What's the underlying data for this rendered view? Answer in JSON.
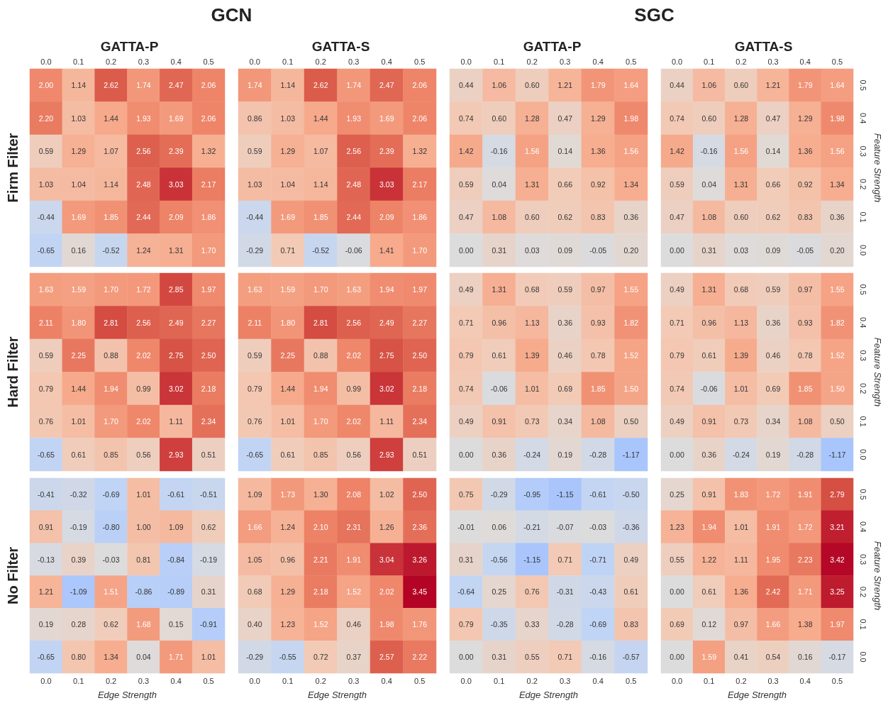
{
  "chart_data": [
    {
      "type": "heatmap",
      "title": "GATTA-P",
      "ylabel": "Firm Filter",
      "annotations": [
        "GCN"
      ],
      "tick_labels": "x",
      "categories": [
        "0.0",
        "0.1",
        "0.2",
        "0.3",
        "0.4",
        "0.5"
      ],
      "y_categories": [
        "0.5",
        "0.4",
        "0.3",
        "0.2",
        "0.1",
        "0.0"
      ],
      "cells": [
        [
          2.0,
          1.14,
          2.62,
          1.74,
          2.47,
          2.06
        ],
        [
          2.2,
          1.03,
          1.44,
          1.93,
          1.69,
          2.06
        ],
        [
          0.59,
          1.29,
          1.07,
          2.56,
          2.39,
          1.32
        ],
        [
          1.03,
          1.04,
          1.14,
          2.48,
          3.03,
          2.17
        ],
        [
          -0.44,
          1.69,
          1.85,
          2.44,
          2.09,
          1.86
        ],
        [
          -0.65,
          0.16,
          -0.52,
          1.24,
          1.31,
          1.7
        ]
      ],
      "cell_labels": [
        [
          "2.00",
          "1.14",
          "2.62",
          "1.74",
          "2.47",
          "2.06"
        ],
        [
          "2.20",
          "1.03",
          "1.44",
          "1.93",
          "1.69",
          "2.06"
        ],
        [
          "0.59",
          "1.29",
          "1.07",
          "2.56",
          "2.39",
          "1.32"
        ],
        [
          "1.03",
          "1.04",
          "1.14",
          "2.48",
          "3.03",
          "2.17"
        ],
        [
          "-0.44",
          "1.69",
          "1.85",
          "2.44",
          "2.09",
          "1.86"
        ],
        [
          "-0.65",
          "0.16",
          "-0.52",
          "1.24",
          "1.31",
          "1.70"
        ]
      ]
    },
    {
      "type": "heatmap",
      "title": "GATTA-S",
      "tick_labels": "x",
      "categories": [
        "0.0",
        "0.1",
        "0.2",
        "0.3",
        "0.4",
        "0.5"
      ],
      "y_categories": [
        "0.5",
        "0.4",
        "0.3",
        "0.2",
        "0.1",
        "0.0"
      ],
      "cells": [
        [
          1.74,
          1.14,
          2.62,
          1.74,
          2.47,
          2.06
        ],
        [
          0.86,
          1.03,
          1.44,
          1.93,
          1.69,
          2.06
        ],
        [
          0.59,
          1.29,
          1.07,
          2.56,
          2.39,
          1.32
        ],
        [
          1.03,
          1.04,
          1.14,
          2.48,
          3.03,
          2.17
        ],
        [
          -0.44,
          1.69,
          1.85,
          2.44,
          2.09,
          1.86
        ],
        [
          -0.29,
          0.71,
          -0.52,
          -0.06,
          1.41,
          1.7
        ]
      ],
      "cell_labels": [
        [
          "1.74",
          "1.14",
          "2.62",
          "1.74",
          "2.47",
          "2.06"
        ],
        [
          "0.86",
          "1.03",
          "1.44",
          "1.93",
          "1.69",
          "2.06"
        ],
        [
          "0.59",
          "1.29",
          "1.07",
          "2.56",
          "2.39",
          "1.32"
        ],
        [
          "1.03",
          "1.04",
          "1.14",
          "2.48",
          "3.03",
          "2.17"
        ],
        [
          "-0.44",
          "1.69",
          "1.85",
          "2.44",
          "2.09",
          "1.86"
        ],
        [
          "-0.29",
          "0.71",
          "-0.52",
          "-0.06",
          "1.41",
          "1.70"
        ]
      ]
    },
    {
      "type": "heatmap",
      "title": "GATTA-P",
      "annotations": [
        "SGC"
      ],
      "tick_labels": "x",
      "categories": [
        "0.0",
        "0.1",
        "0.2",
        "0.3",
        "0.4",
        "0.5"
      ],
      "y_categories": [
        "0.5",
        "0.4",
        "0.3",
        "0.2",
        "0.1",
        "0.0"
      ],
      "cells": [
        [
          0.44,
          1.06,
          0.6,
          1.21,
          1.79,
          1.64
        ],
        [
          0.74,
          0.6,
          1.28,
          0.47,
          1.29,
          1.98
        ],
        [
          1.42,
          -0.16,
          1.56,
          0.14,
          1.36,
          1.56
        ],
        [
          0.59,
          0.04,
          1.31,
          0.66,
          0.92,
          1.34
        ],
        [
          0.47,
          1.08,
          0.6,
          0.62,
          0.83,
          0.36
        ],
        [
          0.0,
          0.31,
          0.03,
          0.09,
          -0.05,
          0.2
        ]
      ],
      "cell_labels": [
        [
          "0.44",
          "1.06",
          "0.60",
          "1.21",
          "1.79",
          "1.64"
        ],
        [
          "0.74",
          "0.60",
          "1.28",
          "0.47",
          "1.29",
          "1.98"
        ],
        [
          "1.42",
          "-0.16",
          "1.56",
          "0.14",
          "1.36",
          "1.56"
        ],
        [
          "0.59",
          "0.04",
          "1.31",
          "0.66",
          "0.92",
          "1.34"
        ],
        [
          "0.47",
          "1.08",
          "0.60",
          "0.62",
          "0.83",
          "0.36"
        ],
        [
          "0.00",
          "0.31",
          "0.03",
          "0.09",
          "-0.05",
          "0.20"
        ]
      ]
    },
    {
      "type": "heatmap",
      "title": "GATTA-S",
      "y2label": "Feature Strength",
      "categories": [
        "0.0",
        "0.1",
        "0.2",
        "0.3",
        "0.4",
        "0.5"
      ],
      "y_categories": [
        "0.5",
        "0.4",
        "0.3",
        "0.2",
        "0.1",
        "0.0"
      ],
      "cells": [
        [
          0.44,
          1.06,
          0.6,
          1.21,
          1.79,
          1.64
        ],
        [
          0.74,
          0.6,
          1.28,
          0.47,
          1.29,
          1.98
        ],
        [
          1.42,
          -0.16,
          1.56,
          0.14,
          1.36,
          1.56
        ],
        [
          0.59,
          0.04,
          1.31,
          0.66,
          0.92,
          1.34
        ],
        [
          0.47,
          1.08,
          0.6,
          0.62,
          0.83,
          0.36
        ],
        [
          0.0,
          0.31,
          0.03,
          0.09,
          -0.05,
          0.2
        ]
      ],
      "cell_labels": [
        [
          "0.44",
          "1.06",
          "0.60",
          "1.21",
          "1.79",
          "1.64"
        ],
        [
          "0.74",
          "0.60",
          "1.28",
          "0.47",
          "1.29",
          "1.98"
        ],
        [
          "1.42",
          "-0.16",
          "1.56",
          "0.14",
          "1.36",
          "1.56"
        ],
        [
          "0.59",
          "0.04",
          "1.31",
          "0.66",
          "0.92",
          "1.34"
        ],
        [
          "0.47",
          "1.08",
          "0.60",
          "0.62",
          "0.83",
          "0.36"
        ],
        [
          "0.00",
          "0.31",
          "0.03",
          "0.09",
          "-0.05",
          "0.20"
        ]
      ]
    },
    {
      "type": "heatmap",
      "ylabel": "Hard Filter",
      "tick_labels": false,
      "categories": [
        "0.0",
        "0.1",
        "0.2",
        "0.3",
        "0.4",
        "0.5"
      ],
      "y_categories": [
        "0.5",
        "0.4",
        "0.3",
        "0.2",
        "0.1",
        "0.0"
      ],
      "cells": [
        [
          1.63,
          1.59,
          1.7,
          1.72,
          2.85,
          1.97
        ],
        [
          2.11,
          1.8,
          2.81,
          2.56,
          2.49,
          2.27
        ],
        [
          0.59,
          2.25,
          0.88,
          2.02,
          2.75,
          2.5
        ],
        [
          0.79,
          1.44,
          1.94,
          0.99,
          3.02,
          2.18
        ],
        [
          0.76,
          1.01,
          1.7,
          2.02,
          1.11,
          2.34
        ],
        [
          -0.65,
          0.61,
          0.85,
          0.56,
          2.93,
          0.51
        ]
      ],
      "cell_labels": [
        [
          "1.63",
          "1.59",
          "1.70",
          "1.72",
          "2.85",
          "1.97"
        ],
        [
          "2.11",
          "1.80",
          "2.81",
          "2.56",
          "2.49",
          "2.27"
        ],
        [
          "0.59",
          "2.25",
          "0.88",
          "2.02",
          "2.75",
          "2.50"
        ],
        [
          "0.79",
          "1.44",
          "1.94",
          "0.99",
          "3.02",
          "2.18"
        ],
        [
          "0.76",
          "1.01",
          "1.70",
          "2.02",
          "1.11",
          "2.34"
        ],
        [
          "-0.65",
          "0.61",
          "0.85",
          "0.56",
          "2.93",
          "0.51"
        ]
      ]
    },
    {
      "type": "heatmap",
      "categories": [
        "0.0",
        "0.1",
        "0.2",
        "0.3",
        "0.4",
        "0.5"
      ],
      "y_categories": [
        "0.5",
        "0.4",
        "0.3",
        "0.2",
        "0.1",
        "0.0"
      ],
      "tick_labels": false,
      "cells": [
        [
          1.63,
          1.59,
          1.7,
          1.63,
          1.94,
          1.97
        ],
        [
          2.11,
          1.8,
          2.81,
          2.56,
          2.49,
          2.27
        ],
        [
          0.59,
          2.25,
          0.88,
          2.02,
          2.75,
          2.5
        ],
        [
          0.79,
          1.44,
          1.94,
          0.99,
          3.02,
          2.18
        ],
        [
          0.76,
          1.01,
          1.7,
          2.02,
          1.11,
          2.34
        ],
        [
          -0.65,
          0.61,
          0.85,
          0.56,
          2.93,
          0.51
        ]
      ],
      "cell_labels": [
        [
          "1.63",
          "1.59",
          "1.70",
          "1.63",
          "1.94",
          "1.97"
        ],
        [
          "2.11",
          "1.80",
          "2.81",
          "2.56",
          "2.49",
          "2.27"
        ],
        [
          "0.59",
          "2.25",
          "0.88",
          "2.02",
          "2.75",
          "2.50"
        ],
        [
          "0.79",
          "1.44",
          "1.94",
          "0.99",
          "3.02",
          "2.18"
        ],
        [
          "0.76",
          "1.01",
          "1.70",
          "2.02",
          "1.11",
          "2.34"
        ],
        [
          "-0.65",
          "0.61",
          "0.85",
          "0.56",
          "2.93",
          "0.51"
        ]
      ]
    },
    {
      "type": "heatmap",
      "tick_labels": false,
      "categories": [
        "0.0",
        "0.1",
        "0.2",
        "0.3",
        "0.4",
        "0.5"
      ],
      "y_categories": [
        "0.5",
        "0.4",
        "0.3",
        "0.2",
        "0.1",
        "0.0"
      ],
      "cells": [
        [
          0.49,
          1.31,
          0.68,
          0.59,
          0.97,
          1.55
        ],
        [
          0.71,
          0.96,
          1.13,
          0.36,
          0.93,
          1.82
        ],
        [
          0.79,
          0.61,
          1.39,
          0.46,
          0.78,
          1.52
        ],
        [
          0.74,
          -0.06,
          1.01,
          0.69,
          1.85,
          1.5
        ],
        [
          0.49,
          0.91,
          0.73,
          0.34,
          1.08,
          0.5
        ],
        [
          0.0,
          0.36,
          -0.24,
          0.19,
          -0.28,
          -1.17
        ]
      ],
      "cell_labels": [
        [
          "0.49",
          "1.31",
          "0.68",
          "0.59",
          "0.97",
          "1.55"
        ],
        [
          "0.71",
          "0.96",
          "1.13",
          "0.36",
          "0.93",
          "1.82"
        ],
        [
          "0.79",
          "0.61",
          "1.39",
          "0.46",
          "0.78",
          "1.52"
        ],
        [
          "0.74",
          "-0.06",
          "1.01",
          "0.69",
          "1.85",
          "1.50"
        ],
        [
          "0.49",
          "0.91",
          "0.73",
          "0.34",
          "1.08",
          "0.50"
        ],
        [
          "0.00",
          "0.36",
          "-0.24",
          "0.19",
          "-0.28",
          "-1.17"
        ]
      ]
    },
    {
      "type": "heatmap",
      "y2label": "Feature Strength",
      "tick_labels": "y",
      "categories": [
        "0.0",
        "0.1",
        "0.2",
        "0.3",
        "0.4",
        "0.5"
      ],
      "y_categories": [
        "0.5",
        "0.4",
        "0.3",
        "0.2",
        "0.1",
        "0.0"
      ],
      "cells": [
        [
          0.49,
          1.31,
          0.68,
          0.59,
          0.97,
          1.55
        ],
        [
          0.71,
          0.96,
          1.13,
          0.36,
          0.93,
          1.82
        ],
        [
          0.79,
          0.61,
          1.39,
          0.46,
          0.78,
          1.52
        ],
        [
          0.74,
          -0.06,
          1.01,
          0.69,
          1.85,
          1.5
        ],
        [
          0.49,
          0.91,
          0.73,
          0.34,
          1.08,
          0.5
        ],
        [
          0.0,
          0.36,
          -0.24,
          0.19,
          -0.28,
          -1.17
        ]
      ],
      "cell_labels": [
        [
          "0.49",
          "1.31",
          "0.68",
          "0.59",
          "0.97",
          "1.55"
        ],
        [
          "0.71",
          "0.96",
          "1.13",
          "0.36",
          "0.93",
          "1.82"
        ],
        [
          "0.79",
          "0.61",
          "1.39",
          "0.46",
          "0.78",
          "1.52"
        ],
        [
          "0.74",
          "-0.06",
          "1.01",
          "0.69",
          "1.85",
          "1.50"
        ],
        [
          "0.49",
          "0.91",
          "0.73",
          "0.34",
          "1.08",
          "0.50"
        ],
        [
          "0.00",
          "0.36",
          "-0.24",
          "0.19",
          "-0.28",
          "-1.17"
        ]
      ]
    },
    {
      "type": "heatmap",
      "ylabel": "No Filter",
      "xlabel": "Edge Strength",
      "tick_labels": "x",
      "categories": [
        "0.0",
        "0.1",
        "0.2",
        "0.3",
        "0.4",
        "0.5"
      ],
      "y_categories": [
        "0.5",
        "0.4",
        "0.3",
        "0.2",
        "0.1",
        "0.0"
      ],
      "cells": [
        [
          -0.41,
          -0.32,
          -0.69,
          1.01,
          -0.61,
          -0.51
        ],
        [
          0.91,
          -0.19,
          -0.8,
          1.0,
          1.09,
          0.62
        ],
        [
          -0.13,
          0.39,
          -0.03,
          0.81,
          -0.84,
          -0.19
        ],
        [
          1.21,
          -1.09,
          1.51,
          -0.86,
          -0.89,
          0.31
        ],
        [
          0.19,
          0.28,
          0.62,
          1.68,
          0.15,
          -0.91
        ],
        [
          -0.65,
          0.8,
          1.34,
          0.04,
          1.71,
          1.01
        ]
      ],
      "cell_labels": [
        [
          "-0.41",
          "-0.32",
          "-0.69",
          "1.01",
          "-0.61",
          "-0.51"
        ],
        [
          "0.91",
          "-0.19",
          "-0.80",
          "1.00",
          "1.09",
          "0.62"
        ],
        [
          "-0.13",
          "0.39",
          "-0.03",
          "0.81",
          "-0.84",
          "-0.19"
        ],
        [
          "1.21",
          "-1.09",
          "1.51",
          "-0.86",
          "-0.89",
          "0.31"
        ],
        [
          "0.19",
          "0.28",
          "0.62",
          "1.68",
          "0.15",
          "-0.91"
        ],
        [
          "-0.65",
          "0.80",
          "1.34",
          "0.04",
          "1.71",
          "1.01"
        ]
      ]
    },
    {
      "type": "heatmap",
      "xlabel": "Edge Strength",
      "tick_labels": "x",
      "categories": [
        "0.0",
        "0.1",
        "0.2",
        "0.3",
        "0.4",
        "0.5"
      ],
      "y_categories": [
        "0.5",
        "0.4",
        "0.3",
        "0.2",
        "0.1",
        "0.0"
      ],
      "cells": [
        [
          1.09,
          1.73,
          1.3,
          2.08,
          1.02,
          2.5
        ],
        [
          1.66,
          1.24,
          2.1,
          2.31,
          1.26,
          2.36
        ],
        [
          1.05,
          0.96,
          2.21,
          1.91,
          3.04,
          3.26
        ],
        [
          0.68,
          1.29,
          2.18,
          1.52,
          2.02,
          3.45
        ],
        [
          0.4,
          1.23,
          1.52,
          0.46,
          1.98,
          1.76
        ],
        [
          -0.29,
          -0.55,
          0.72,
          0.37,
          2.57,
          2.22
        ]
      ],
      "cell_labels": [
        [
          "1.09",
          "1.73",
          "1.30",
          "2.08",
          "1.02",
          "2.50"
        ],
        [
          "1.66",
          "1.24",
          "2.10",
          "2.31",
          "1.26",
          "2.36"
        ],
        [
          "1.05",
          "0.96",
          "2.21",
          "1.91",
          "3.04",
          "3.26"
        ],
        [
          "0.68",
          "1.29",
          "2.18",
          "1.52",
          "2.02",
          "3.45"
        ],
        [
          "0.40",
          "1.23",
          "1.52",
          "0.46",
          "1.98",
          "1.76"
        ],
        [
          "-0.29",
          "-0.55",
          "0.72",
          "0.37",
          "2.57",
          "2.22"
        ]
      ]
    },
    {
      "type": "heatmap",
      "xlabel": "Edge Strength",
      "tick_labels": "x",
      "categories": [
        "0.0",
        "0.1",
        "0.2",
        "0.3",
        "0.4",
        "0.5"
      ],
      "y_categories": [
        "0.5",
        "0.4",
        "0.3",
        "0.2",
        "0.1",
        "0.0"
      ],
      "cells": [
        [
          0.75,
          -0.29,
          -0.95,
          -1.15,
          -0.61,
          -0.5
        ],
        [
          -0.01,
          0.06,
          -0.21,
          -0.07,
          -0.03,
          -0.36
        ],
        [
          0.31,
          -0.56,
          -1.15,
          0.71,
          -0.71,
          0.49
        ],
        [
          -0.64,
          0.25,
          0.76,
          -0.31,
          -0.43,
          0.61
        ],
        [
          0.79,
          -0.35,
          0.33,
          -0.28,
          -0.69,
          0.83
        ],
        [
          0.0,
          0.31,
          0.55,
          0.71,
          -0.16,
          -0.57
        ]
      ],
      "cell_labels": [
        [
          "0.75",
          "-0.29",
          "-0.95",
          "-1.15",
          "-0.61",
          "-0.50"
        ],
        [
          "-0.01",
          "0.06",
          "-0.21",
          "-0.07",
          "-0.03",
          "-0.36"
        ],
        [
          "0.31",
          "-0.56",
          "-1.15",
          "0.71",
          "-0.71",
          "0.49"
        ],
        [
          "-0.64",
          "0.25",
          "0.76",
          "-0.31",
          "-0.43",
          "0.61"
        ],
        [
          "0.79",
          "-0.35",
          "0.33",
          "-0.28",
          "-0.69",
          "0.83"
        ],
        [
          "0.00",
          "0.31",
          "0.55",
          "0.71",
          "-0.16",
          "-0.57"
        ]
      ]
    },
    {
      "type": "heatmap",
      "xlabel": "Edge Strength",
      "y2label": "Feature Strength",
      "categories": [
        "0.0",
        "0.1",
        "0.2",
        "0.3",
        "0.4",
        "0.5"
      ],
      "y_categories": [
        "0.5",
        "0.4",
        "0.3",
        "0.2",
        "0.1",
        "0.0"
      ],
      "cells": [
        [
          0.25,
          0.91,
          1.83,
          1.72,
          1.91,
          2.79
        ],
        [
          1.23,
          1.94,
          1.01,
          1.91,
          1.72,
          3.21
        ],
        [
          0.55,
          1.22,
          1.11,
          1.95,
          2.23,
          3.42
        ],
        [
          0.0,
          0.61,
          1.36,
          2.42,
          1.71,
          3.25
        ],
        [
          0.69,
          0.12,
          0.97,
          1.66,
          1.38,
          1.97
        ],
        [
          0.0,
          1.59,
          0.41,
          0.54,
          0.16,
          -0.17
        ]
      ],
      "cell_labels": [
        [
          "0.25",
          "0.91",
          "1.83",
          "1.72",
          "1.91",
          "2.79"
        ],
        [
          "1.23",
          "1.94",
          "1.01",
          "1.91",
          "1.72",
          "3.21"
        ],
        [
          "0.55",
          "1.22",
          "1.11",
          "1.95",
          "2.23",
          "3.42"
        ],
        [
          "0.00",
          "0.61",
          "1.36",
          "2.42",
          "1.71",
          "3.25"
        ],
        [
          "0.69",
          "0.12",
          "0.97",
          "1.66",
          "1.38",
          "1.97"
        ],
        [
          "0.00",
          "1.59",
          "0.41",
          "0.54",
          "0.16",
          "-0.17"
        ]
      ]
    }
  ]
}
